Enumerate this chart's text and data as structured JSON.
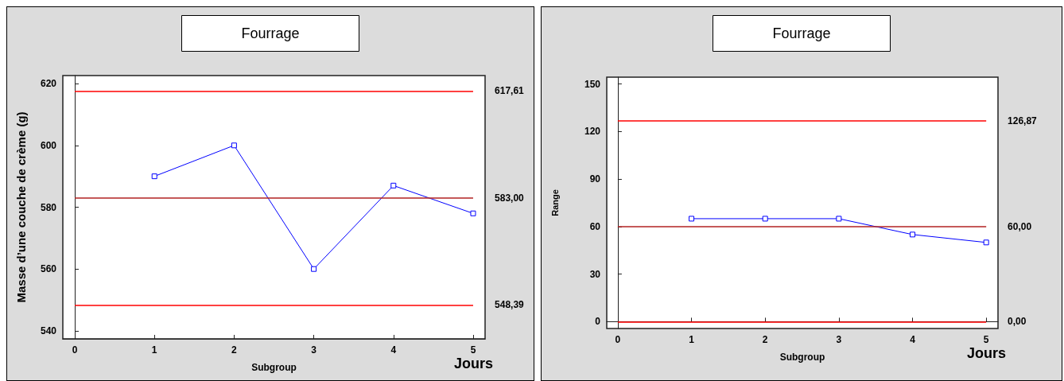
{
  "chart_data": [
    {
      "type": "line",
      "title": "Fourrage",
      "xlabel": "Subgroup",
      "ylabel": "Masse d’une couche de crème (g)",
      "x": [
        1,
        2,
        3,
        4,
        5
      ],
      "values": [
        590,
        600,
        560,
        587,
        578
      ],
      "color": "#0000ff",
      "marker": "square",
      "xlim": [
        -0.15,
        5.15
      ],
      "xticks": [
        0,
        1,
        2,
        3,
        4,
        5
      ],
      "ylim": [
        537.4,
        622.6
      ],
      "yticks": [
        540,
        560,
        580,
        600,
        620
      ],
      "ref_lines": [
        {
          "axis": "y",
          "value": 617.61,
          "label": "617,61",
          "color": "#ff0000"
        },
        {
          "axis": "y",
          "value": 583.0,
          "label": "583,00",
          "color": "#b22222"
        },
        {
          "axis": "y",
          "value": 548.39,
          "label": "548,39",
          "color": "#ff0000"
        }
      ],
      "annotations": [
        "Jours"
      ]
    },
    {
      "type": "line",
      "title": "Fourrage",
      "xlabel": "Subgroup",
      "ylabel": "Range",
      "x": [
        1,
        2,
        3,
        4,
        5
      ],
      "values": [
        65,
        65,
        65,
        55,
        50
      ],
      "color": "#0000ff",
      "marker": "square",
      "xlim": [
        -0.15,
        5.16
      ],
      "xticks": [
        0,
        1,
        2,
        3,
        4,
        5
      ],
      "ylim": [
        -4.3,
        154.3
      ],
      "yticks": [
        0,
        30,
        60,
        90,
        120,
        150
      ],
      "ref_lines": [
        {
          "axis": "y",
          "value": 126.87,
          "label": "126,87",
          "color": "#ff0000"
        },
        {
          "axis": "y",
          "value": 60.0,
          "label": "60,00",
          "color": "#b22222"
        },
        {
          "axis": "y",
          "value": 0.0,
          "label": "0,00",
          "color": "#ff0000"
        }
      ],
      "annotations": [
        "Jours"
      ]
    }
  ]
}
